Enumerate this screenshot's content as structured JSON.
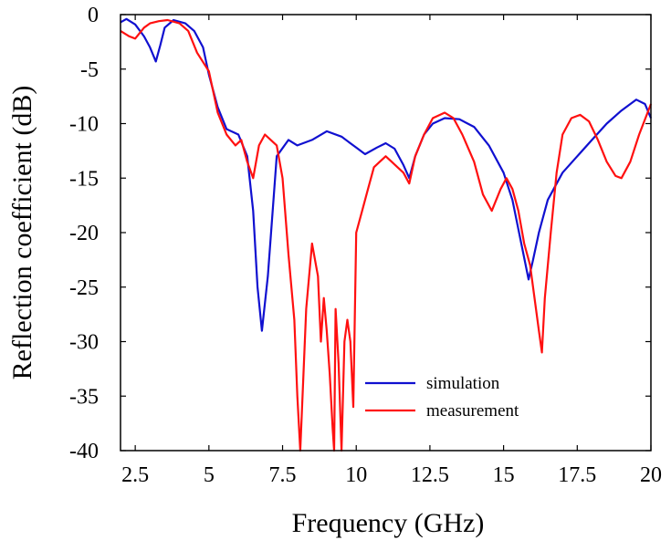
{
  "chart_data": {
    "type": "line",
    "title": "",
    "xlabel": "Frequency (GHz)",
    "ylabel": "Reflection coefficient (dB)",
    "xlim": [
      2,
      20
    ],
    "ylim": [
      -40,
      0
    ],
    "xticks": [
      2.5,
      5,
      7.5,
      10,
      12.5,
      15,
      17.5,
      20
    ],
    "xtick_labels": [
      "2.5",
      "5",
      "7.5",
      "10",
      "12.5",
      "15",
      "17.5",
      "20"
    ],
    "yticks": [
      0,
      -5,
      -10,
      -15,
      -20,
      -25,
      -30,
      -35,
      -40
    ],
    "ytick_labels": [
      "0",
      "-5",
      "-10",
      "-15",
      "-20",
      "-25",
      "-30",
      "-35",
      "-40"
    ],
    "grid": false,
    "legend_position": "bottom-center",
    "series": [
      {
        "name": "simulation",
        "color": "#1010d0",
        "x": [
          2.0,
          2.2,
          2.5,
          2.8,
          3.0,
          3.2,
          3.35,
          3.5,
          3.8,
          4.2,
          4.5,
          4.8,
          5.0,
          5.3,
          5.6,
          6.0,
          6.3,
          6.5,
          6.65,
          6.8,
          7.0,
          7.3,
          7.7,
          8.0,
          8.5,
          9.0,
          9.5,
          10.0,
          10.3,
          10.7,
          11.0,
          11.3,
          11.6,
          11.8,
          12.0,
          12.3,
          12.6,
          13.0,
          13.5,
          14.0,
          14.5,
          15.0,
          15.3,
          15.6,
          15.85,
          16.0,
          16.2,
          16.5,
          17.0,
          17.5,
          18.0,
          18.5,
          19.0,
          19.5,
          19.8,
          20.0
        ],
        "y": [
          -0.7,
          -0.4,
          -0.9,
          -2.0,
          -3.0,
          -4.3,
          -2.8,
          -1.2,
          -0.5,
          -0.8,
          -1.5,
          -3.0,
          -5.5,
          -8.5,
          -10.5,
          -11.0,
          -13.0,
          -18.0,
          -25.0,
          -29.0,
          -24.0,
          -13.0,
          -11.5,
          -12.0,
          -11.5,
          -10.7,
          -11.2,
          -12.2,
          -12.8,
          -12.2,
          -11.8,
          -12.3,
          -13.8,
          -15.0,
          -13.0,
          -11.0,
          -10.0,
          -9.5,
          -9.6,
          -10.3,
          -12.0,
          -14.5,
          -17.0,
          -21.0,
          -24.3,
          -22.5,
          -20.0,
          -17.0,
          -14.5,
          -13.0,
          -11.5,
          -10.0,
          -8.8,
          -7.8,
          -8.2,
          -9.5
        ]
      },
      {
        "name": "measurement",
        "color": "#ff1010",
        "x": [
          2.0,
          2.3,
          2.5,
          2.8,
          3.0,
          3.3,
          3.6,
          4.0,
          4.3,
          4.6,
          5.0,
          5.3,
          5.6,
          5.9,
          6.1,
          6.3,
          6.5,
          6.7,
          6.9,
          7.1,
          7.3,
          7.5,
          7.7,
          7.9,
          8.0,
          8.1,
          8.3,
          8.5,
          8.7,
          8.8,
          8.9,
          9.0,
          9.1,
          9.2,
          9.25,
          9.3,
          9.4,
          9.5,
          9.6,
          9.7,
          9.8,
          9.9,
          10.0,
          10.2,
          10.4,
          10.6,
          10.8,
          11.0,
          11.2,
          11.4,
          11.6,
          11.8,
          12.0,
          12.3,
          12.6,
          13.0,
          13.3,
          13.6,
          14.0,
          14.3,
          14.6,
          14.9,
          15.1,
          15.3,
          15.5,
          15.7,
          15.9,
          16.0,
          16.1,
          16.2,
          16.3,
          16.4,
          16.6,
          16.8,
          17.0,
          17.3,
          17.6,
          17.9,
          18.2,
          18.5,
          18.8,
          19.0,
          19.3,
          19.6,
          20.0
        ],
        "y": [
          -1.5,
          -2.0,
          -2.2,
          -1.2,
          -0.8,
          -0.6,
          -0.5,
          -0.8,
          -1.5,
          -3.5,
          -5.2,
          -9.0,
          -11.0,
          -12.0,
          -11.5,
          -13.5,
          -15.0,
          -12.0,
          -11.0,
          -11.5,
          -12.0,
          -15.0,
          -22.0,
          -28.0,
          -35.0,
          -40.0,
          -27.0,
          -21.0,
          -24.0,
          -30.0,
          -26.0,
          -29.0,
          -33.0,
          -38.0,
          -40.0,
          -27.0,
          -32.0,
          -40.0,
          -30.0,
          -28.0,
          -30.0,
          -36.0,
          -20.0,
          -18.0,
          -16.0,
          -14.0,
          -13.5,
          -13.0,
          -13.5,
          -14.0,
          -14.5,
          -15.5,
          -13.0,
          -11.0,
          -9.5,
          -9.0,
          -9.5,
          -11.0,
          -13.5,
          -16.5,
          -18.0,
          -16.0,
          -15.0,
          -16.0,
          -18.0,
          -21.0,
          -23.0,
          -25.0,
          -27.0,
          -29.0,
          -31.0,
          -26.0,
          -20.0,
          -14.5,
          -11.0,
          -9.5,
          -9.2,
          -9.8,
          -11.5,
          -13.5,
          -14.8,
          -15.0,
          -13.5,
          -11.0,
          -8.2
        ]
      }
    ]
  }
}
